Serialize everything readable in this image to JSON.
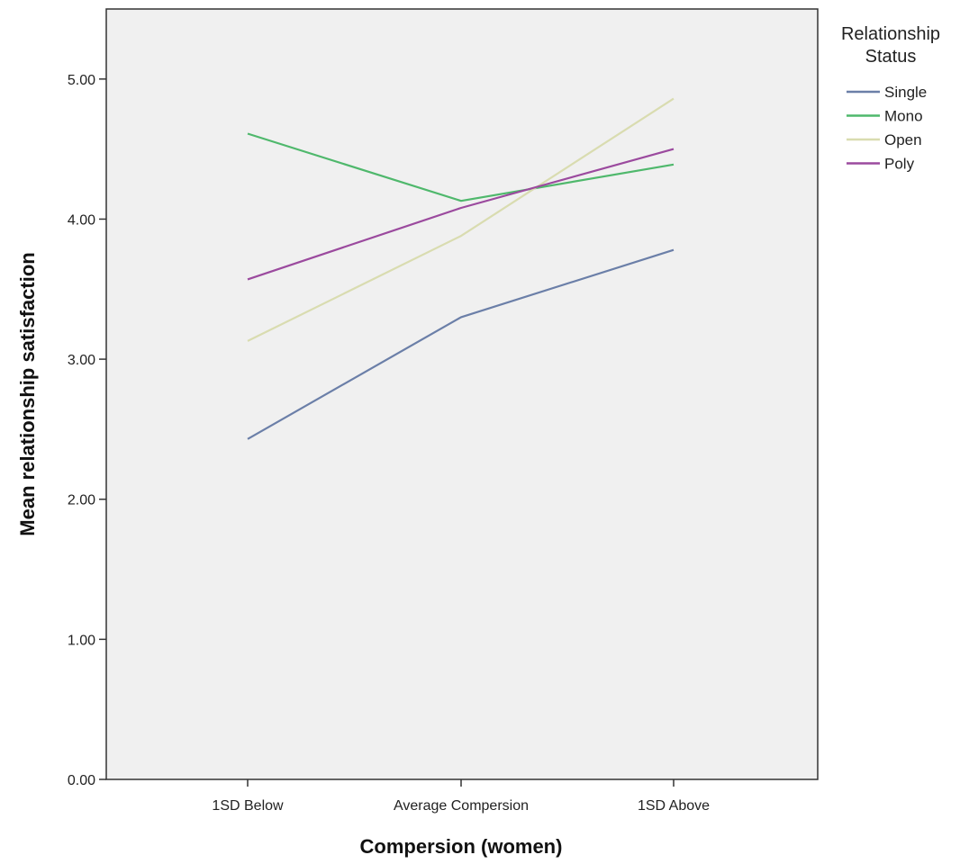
{
  "chart_data": {
    "type": "line",
    "categories": [
      "1SD Below",
      "Average Compersion",
      "1SD Above"
    ],
    "xlabel": "Compersion (women)",
    "ylabel": "Mean relationship satisfaction",
    "ylim": [
      0,
      5.5
    ],
    "yticks": [
      "0.00",
      "1.00",
      "2.00",
      "3.00",
      "4.00",
      "5.00"
    ],
    "grid": false,
    "legend": {
      "title": [
        "Relationship",
        "Status"
      ],
      "position": "right"
    },
    "series": [
      {
        "name": "Single",
        "color": "#6b7fa8",
        "values": [
          2.43,
          3.3,
          3.78
        ]
      },
      {
        "name": "Mono",
        "color": "#4fb86c",
        "values": [
          4.61,
          4.13,
          4.39
        ]
      },
      {
        "name": "Open",
        "color": "#d9dcb0",
        "values": [
          3.13,
          3.88,
          4.86
        ]
      },
      {
        "name": "Poly",
        "color": "#9b4a9e",
        "values": [
          3.57,
          4.08,
          4.5
        ]
      }
    ]
  }
}
